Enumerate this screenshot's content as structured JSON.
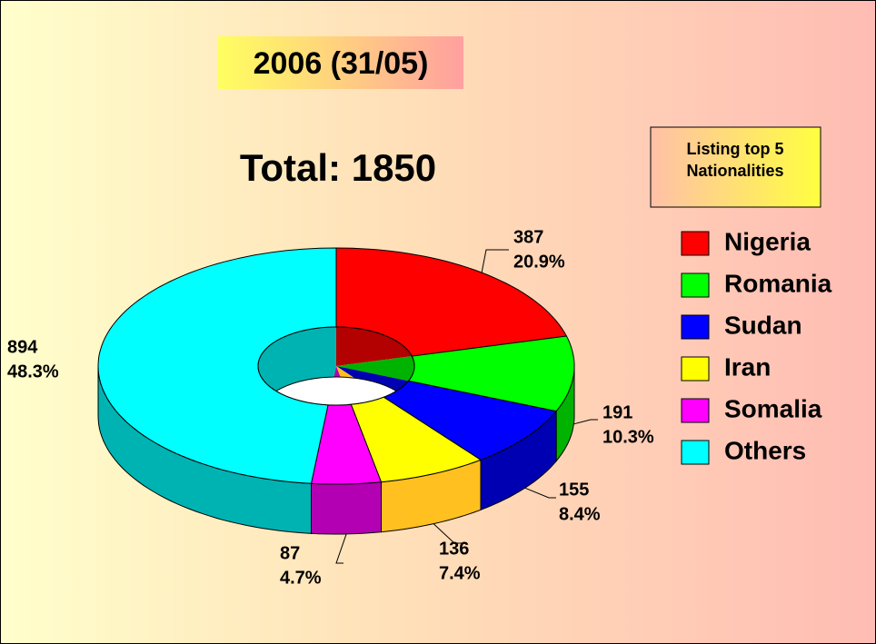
{
  "chart_data": {
    "type": "pie",
    "title": "2006 (31/05)",
    "subtitle": "Total: 1850",
    "legend_title": "Listing top 5 Nationalities",
    "categories": [
      "Nigeria",
      "Romania",
      "Sudan",
      "Iran",
      "Somalia",
      "Others"
    ],
    "values": [
      387,
      191,
      155,
      136,
      87,
      894
    ],
    "percents": [
      20.9,
      10.3,
      8.4,
      7.4,
      4.7,
      48.3
    ],
    "percent_labels": [
      "20.9%",
      "10.3%",
      "8.4%",
      "7.4%",
      "4.7%",
      "48.3%"
    ],
    "colors": [
      "#ff0000",
      "#00ff00",
      "#0000ff",
      "#ffff00",
      "#ff00ff",
      "#00ffff"
    ],
    "legend": "right"
  }
}
